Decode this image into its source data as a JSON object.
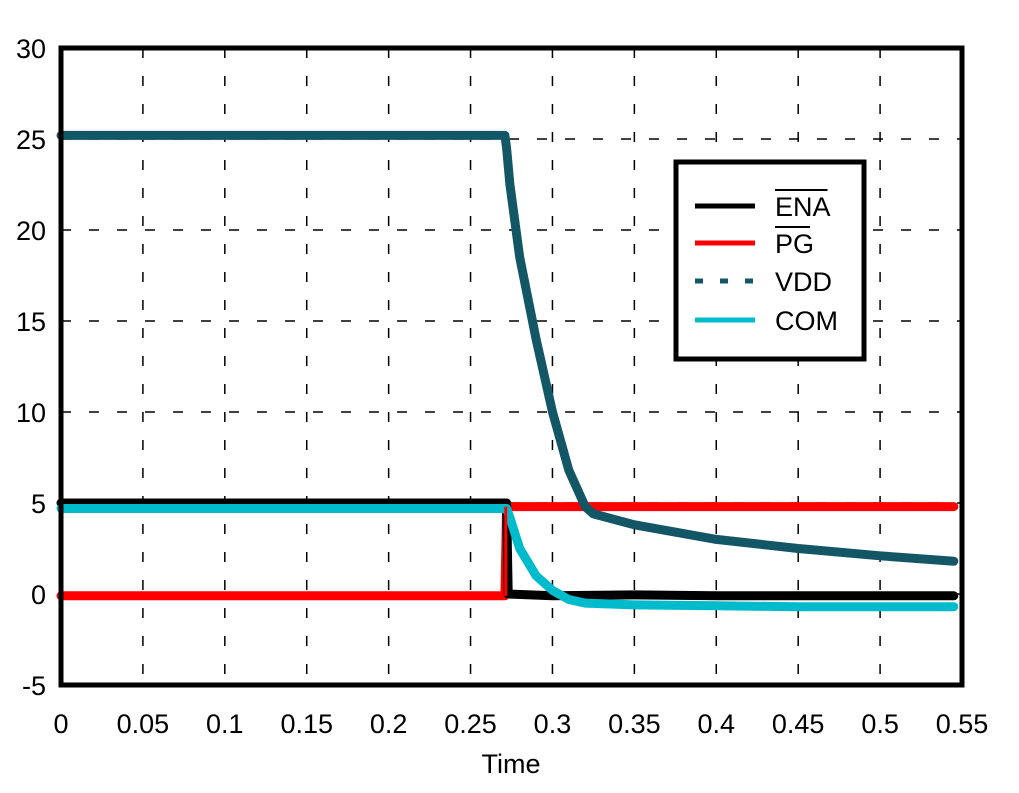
{
  "chart_data": {
    "type": "line",
    "title": "",
    "xlabel": "Time",
    "ylabel": "",
    "xlim": [
      0,
      0.55
    ],
    "ylim": [
      -5,
      30
    ],
    "grid": true,
    "legend_position": "upper right (inset)",
    "x_ticks": [
      "0",
      "0.05",
      "0.1",
      "0.15",
      "0.2",
      "0.25",
      "0.3",
      "0.35",
      "0.4",
      "0.45",
      "0.5",
      "0.55"
    ],
    "y_ticks": [
      "30",
      "25",
      "20",
      "15",
      "10",
      "5",
      "0",
      "-5"
    ],
    "series": [
      {
        "name": "ENA",
        "overline": true,
        "color": "#000000",
        "style": "solid",
        "points": [
          [
            0,
            5.0
          ],
          [
            0.272,
            5.0
          ],
          [
            0.273,
            0.0
          ],
          [
            0.3,
            -0.1
          ],
          [
            0.35,
            -0.05
          ],
          [
            0.4,
            -0.1
          ],
          [
            0.45,
            -0.1
          ],
          [
            0.5,
            -0.1
          ],
          [
            0.545,
            -0.1
          ]
        ]
      },
      {
        "name": "PG",
        "overline": true,
        "color": "#ff0000",
        "style": "solid",
        "points": [
          [
            0,
            -0.1
          ],
          [
            0.271,
            -0.1
          ],
          [
            0.272,
            4.8
          ],
          [
            0.3,
            4.8
          ],
          [
            0.35,
            4.8
          ],
          [
            0.4,
            4.8
          ],
          [
            0.45,
            4.8
          ],
          [
            0.5,
            4.8
          ],
          [
            0.545,
            4.8
          ]
        ]
      },
      {
        "name": "VDD",
        "overline": false,
        "color": "#135767",
        "style": "dashed",
        "points": [
          [
            0,
            25.2
          ],
          [
            0.271,
            25.2
          ],
          [
            0.272,
            24.5
          ],
          [
            0.274,
            22.5
          ],
          [
            0.28,
            18.5
          ],
          [
            0.29,
            14.0
          ],
          [
            0.3,
            10.0
          ],
          [
            0.31,
            6.8
          ],
          [
            0.32,
            4.8
          ],
          [
            0.325,
            4.4
          ],
          [
            0.35,
            3.8
          ],
          [
            0.4,
            3.0
          ],
          [
            0.45,
            2.5
          ],
          [
            0.5,
            2.1
          ],
          [
            0.545,
            1.8
          ]
        ]
      },
      {
        "name": "COM",
        "overline": false,
        "color": "#00bbcc",
        "style": "solid",
        "points": [
          [
            0,
            4.7
          ],
          [
            0.272,
            4.7
          ],
          [
            0.274,
            4.2
          ],
          [
            0.28,
            2.5
          ],
          [
            0.29,
            1.0
          ],
          [
            0.3,
            0.2
          ],
          [
            0.31,
            -0.3
          ],
          [
            0.32,
            -0.5
          ],
          [
            0.35,
            -0.6
          ],
          [
            0.4,
            -0.65
          ],
          [
            0.45,
            -0.7
          ],
          [
            0.5,
            -0.7
          ],
          [
            0.545,
            -0.7
          ]
        ]
      }
    ]
  },
  "legend": {
    "items": [
      {
        "label": "ENA",
        "overline": true
      },
      {
        "label": "PG",
        "overline": true
      },
      {
        "label": "VDD",
        "overline": false
      },
      {
        "label": "COM",
        "overline": false
      }
    ]
  },
  "axes": {
    "x_title": "Time"
  }
}
